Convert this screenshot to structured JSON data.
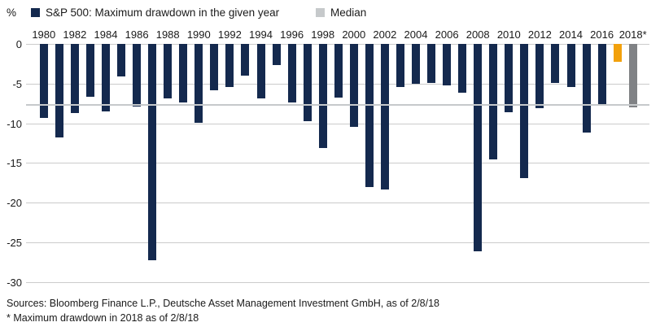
{
  "legend": {
    "unit_label": "%",
    "series1_label": "S&P 500: Maximum drawdown in the given year",
    "series2_label": "Median"
  },
  "colors": {
    "navy": "#14294e",
    "orange": "#f2a10c",
    "gray_bar": "#808285",
    "median_line": "#c6c9cb",
    "gridline": "#cbcbcb",
    "text": "#1a1a1a"
  },
  "chart_data": {
    "type": "bar",
    "title": "S&P 500: Maximum drawdown in the given year",
    "ylabel": "%",
    "xlabel": "",
    "ylim": [
      -30,
      0
    ],
    "grid": true,
    "legend_position": "top",
    "yticks": [
      0,
      -5,
      -10,
      -15,
      -20,
      -25,
      -30
    ],
    "x_tick_labels": [
      "1980",
      "1982",
      "1984",
      "1986",
      "1988",
      "1990",
      "1992",
      "1994",
      "1996",
      "1998",
      "2000",
      "2002",
      "2004",
      "2006",
      "2008",
      "2010",
      "2012",
      "2014",
      "2016",
      "2018*"
    ],
    "categories": [
      "1980",
      "1981",
      "1982",
      "1983",
      "1984",
      "1985",
      "1986",
      "1987",
      "1988",
      "1989",
      "1990",
      "1991",
      "1992",
      "1993",
      "1994",
      "1995",
      "1996",
      "1997",
      "1998",
      "1999",
      "2000",
      "2001",
      "2002",
      "2003",
      "2004",
      "2005",
      "2006",
      "2007",
      "2008",
      "2009",
      "2010",
      "2011",
      "2012",
      "2013",
      "2014",
      "2015",
      "2016",
      "2017",
      "2018"
    ],
    "values": [
      -9.3,
      -11.8,
      -8.7,
      -6.7,
      -8.5,
      -4.1,
      -7.9,
      -27.3,
      -6.9,
      -7.4,
      -9.9,
      -5.8,
      -5.4,
      -4.0,
      -6.9,
      -2.7,
      -7.4,
      -9.7,
      -13.1,
      -6.8,
      -10.5,
      -18.0,
      -18.3,
      -5.4,
      -5.0,
      -4.9,
      -5.2,
      -6.1,
      -26.1,
      -14.6,
      -8.6,
      -16.9,
      -8.1,
      -4.9,
      -5.4,
      -11.2,
      -7.6,
      -2.3,
      -8.0
    ],
    "median": -7.7,
    "bar_color_overrides": {
      "2017": "#f2a10c",
      "2018": "#808285"
    }
  },
  "footer": {
    "line1": "Sources: Bloomberg Finance L.P., Deutsche Asset Management Investment GmbH, as of 2/8/18",
    "line2": "* Maximum drawdown in 2018 as of 2/8/18"
  }
}
